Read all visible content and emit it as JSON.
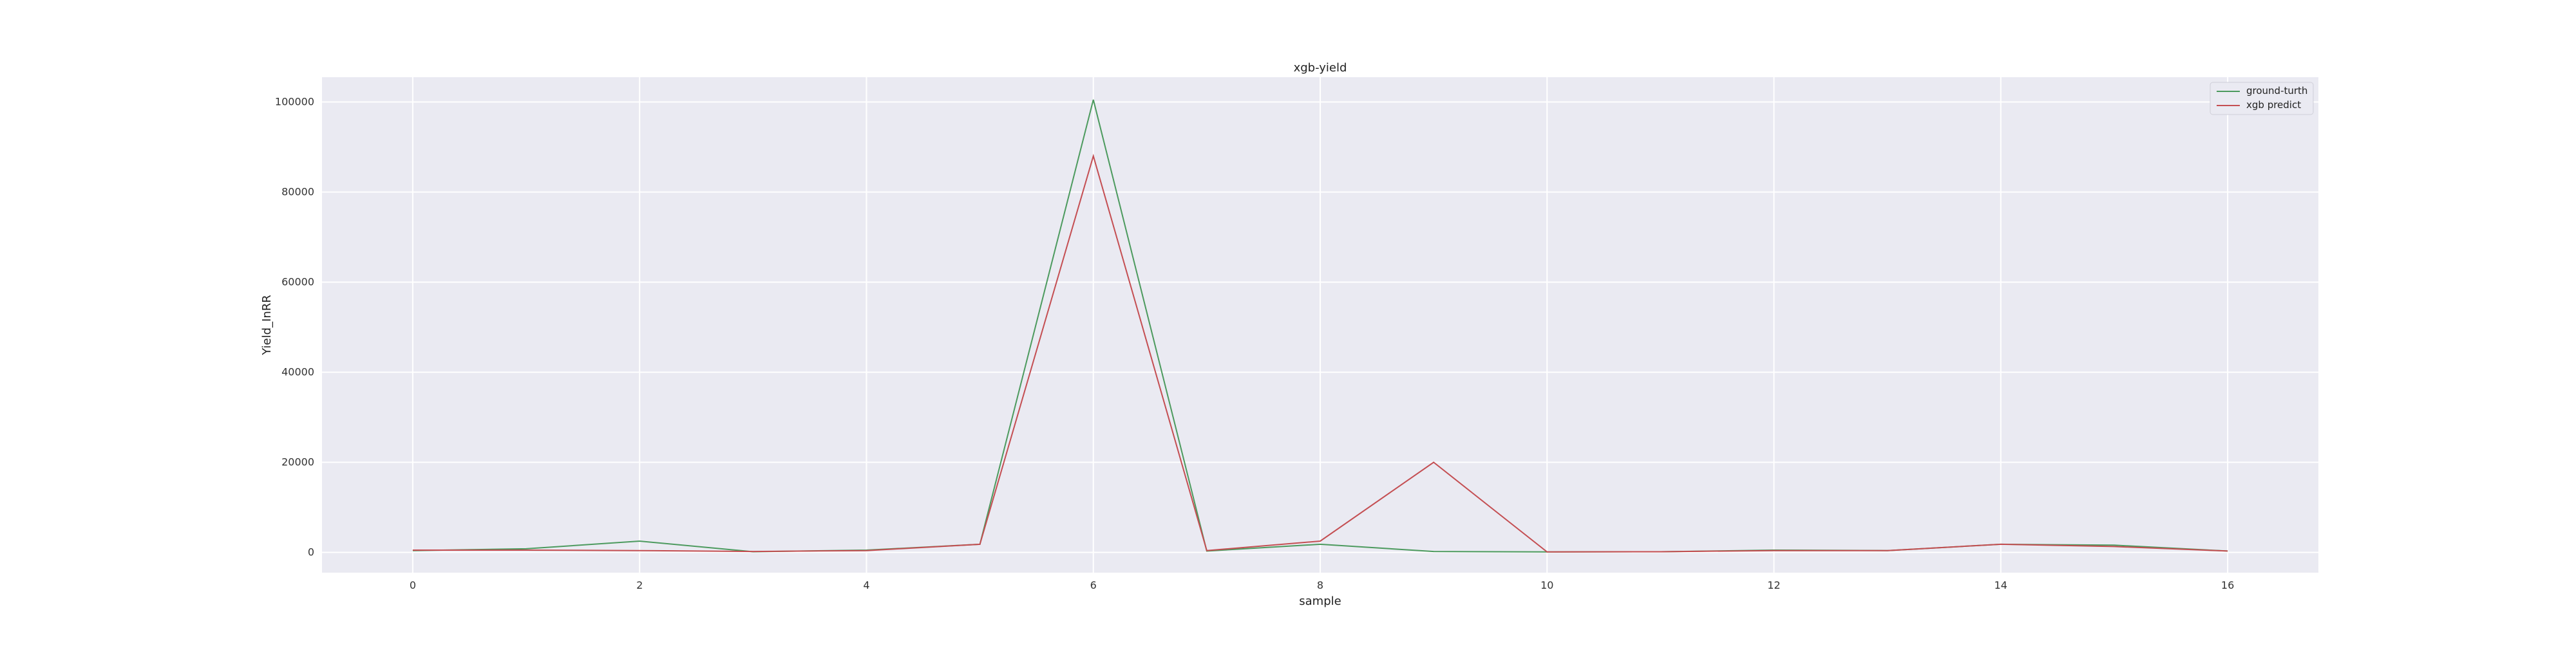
{
  "chart_data": {
    "type": "line",
    "title": "xgb-yield",
    "xlabel": "sample",
    "ylabel": "Yield_InRR",
    "x": [
      0,
      1,
      2,
      3,
      4,
      5,
      6,
      7,
      8,
      9,
      10,
      11,
      12,
      13,
      14,
      15,
      16
    ],
    "series": [
      {
        "name": "ground-turth",
        "color": "#4c9a5e",
        "values": [
          400,
          800,
          2500,
          150,
          500,
          1800,
          100500,
          300,
          1800,
          200,
          100,
          150,
          500,
          400,
          1800,
          1600,
          300
        ]
      },
      {
        "name": "xgb predict",
        "color": "#c44e52",
        "values": [
          500,
          500,
          400,
          200,
          400,
          1800,
          88000,
          400,
          2500,
          20000,
          100,
          150,
          400,
          400,
          1800,
          1300,
          300
        ]
      }
    ],
    "xlim": [
      -0.8,
      16.8
    ],
    "ylim": [
      -4500,
      105500
    ],
    "xticks": [
      0,
      2,
      4,
      6,
      8,
      10,
      12,
      14,
      16
    ],
    "yticks": [
      0,
      20000,
      40000,
      60000,
      80000,
      100000
    ],
    "xtick_labels": [
      "0",
      "2",
      "4",
      "6",
      "8",
      "10",
      "12",
      "14",
      "16"
    ],
    "ytick_labels": [
      "0",
      "20000",
      "40000",
      "60000",
      "80000",
      "100000"
    ],
    "grid": true,
    "legend": "top-right",
    "background": "#eaeaf2",
    "grid_color": "#ffffff"
  }
}
